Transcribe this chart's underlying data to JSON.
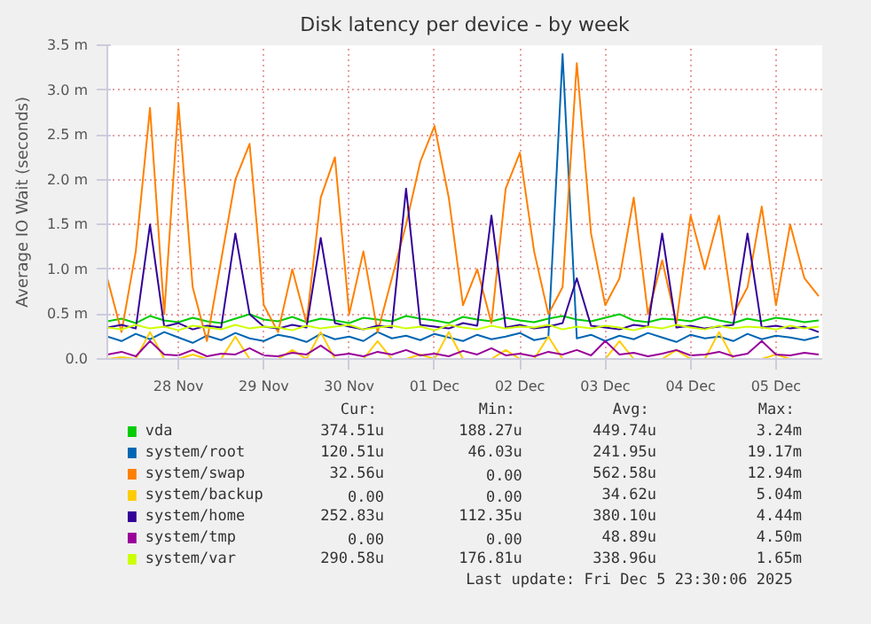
{
  "chart_data": {
    "type": "line",
    "title": "Disk latency per device - by week",
    "ylabel": "Average IO Wait (seconds)",
    "x": [
      "2025-11-27T04:00",
      "2025-11-27T08:00",
      "2025-11-27T12:00",
      "2025-11-27T16:00",
      "2025-11-27T20:00",
      "2025-11-28T00:00",
      "2025-11-28T04:00",
      "2025-11-28T08:00",
      "2025-11-28T12:00",
      "2025-11-28T16:00",
      "2025-11-28T20:00",
      "2025-11-29T00:00",
      "2025-11-29T04:00",
      "2025-11-29T08:00",
      "2025-11-29T12:00",
      "2025-11-29T16:00",
      "2025-11-29T20:00",
      "2025-11-30T00:00",
      "2025-11-30T04:00",
      "2025-11-30T08:00",
      "2025-11-30T12:00",
      "2025-11-30T16:00",
      "2025-11-30T20:00",
      "2025-12-01T00:00",
      "2025-12-01T04:00",
      "2025-12-01T08:00",
      "2025-12-01T12:00",
      "2025-12-01T16:00",
      "2025-12-01T20:00",
      "2025-12-02T00:00",
      "2025-12-02T04:00",
      "2025-12-02T08:00",
      "2025-12-02T12:00",
      "2025-12-02T16:00",
      "2025-12-02T20:00",
      "2025-12-03T00:00",
      "2025-12-03T04:00",
      "2025-12-03T08:00",
      "2025-12-03T12:00",
      "2025-12-03T16:00",
      "2025-12-03T20:00",
      "2025-12-04T00:00",
      "2025-12-04T04:00",
      "2025-12-04T08:00",
      "2025-12-04T12:00",
      "2025-12-04T16:00",
      "2025-12-04T20:00",
      "2025-12-05T00:00",
      "2025-12-05T04:00",
      "2025-12-05T08:00",
      "2025-12-05T12:00"
    ],
    "series": [
      {
        "name": "vda",
        "color": "#00cc00",
        "values": [
          0.42,
          0.45,
          0.4,
          0.48,
          0.43,
          0.41,
          0.46,
          0.42,
          0.4,
          0.45,
          0.5,
          0.44,
          0.42,
          0.47,
          0.41,
          0.45,
          0.43,
          0.4,
          0.46,
          0.44,
          0.42,
          0.48,
          0.45,
          0.43,
          0.4,
          0.47,
          0.44,
          0.42,
          0.46,
          0.43,
          0.41,
          0.45,
          0.48,
          0.44,
          0.42,
          0.46,
          0.5,
          0.43,
          0.41,
          0.45,
          0.44,
          0.42,
          0.47,
          0.43,
          0.4,
          0.45,
          0.42,
          0.46,
          0.44,
          0.41,
          0.43
        ]
      },
      {
        "name": "system/root",
        "color": "#0066b3",
        "values": [
          0.25,
          0.2,
          0.28,
          0.22,
          0.3,
          0.24,
          0.18,
          0.26,
          0.21,
          0.29,
          0.23,
          0.2,
          0.27,
          0.24,
          0.19,
          0.28,
          0.22,
          0.25,
          0.2,
          0.3,
          0.23,
          0.26,
          0.21,
          0.28,
          0.24,
          0.2,
          0.27,
          0.22,
          0.25,
          0.29,
          0.21,
          0.24,
          3.4,
          0.23,
          0.27,
          0.2,
          0.26,
          0.22,
          0.29,
          0.24,
          0.19,
          0.27,
          0.23,
          0.25,
          0.2,
          0.28,
          0.22,
          0.26,
          0.24,
          0.21,
          0.25
        ]
      },
      {
        "name": "system/swap",
        "color": "#ff8000",
        "values": [
          0.9,
          0.3,
          1.2,
          2.8,
          0.5,
          2.85,
          0.8,
          0.2,
          1.1,
          2.0,
          2.4,
          0.6,
          0.3,
          1.0,
          0.4,
          1.8,
          2.25,
          0.5,
          1.2,
          0.3,
          0.9,
          1.5,
          2.2,
          2.6,
          1.8,
          0.6,
          1.0,
          0.4,
          1.9,
          2.3,
          1.2,
          0.5,
          0.8,
          3.3,
          1.4,
          0.6,
          0.9,
          1.8,
          0.5,
          1.1,
          0.4,
          1.6,
          1.0,
          1.6,
          0.5,
          0.8,
          1.7,
          0.6,
          1.5,
          0.9,
          0.7
        ]
      },
      {
        "name": "system/backup",
        "color": "#ffcc00",
        "values": [
          0.0,
          0.02,
          0.0,
          0.3,
          0.0,
          0.0,
          0.05,
          0.0,
          0.0,
          0.25,
          0.0,
          0.0,
          0.0,
          0.1,
          0.0,
          0.3,
          0.0,
          0.0,
          0.0,
          0.2,
          0.0,
          0.0,
          0.05,
          0.0,
          0.3,
          0.0,
          0.0,
          0.0,
          0.1,
          0.0,
          0.0,
          0.25,
          0.0,
          0.0,
          0.0,
          0.0,
          0.2,
          0.0,
          0.0,
          0.0,
          0.1,
          0.0,
          0.0,
          0.3,
          0.0,
          0.0,
          0.0,
          0.05,
          0.0,
          0.0,
          0.0
        ]
      },
      {
        "name": "system/home",
        "color": "#330099",
        "values": [
          0.35,
          0.38,
          0.34,
          1.5,
          0.36,
          0.4,
          0.33,
          0.37,
          0.35,
          1.4,
          0.5,
          0.36,
          0.34,
          0.38,
          0.35,
          1.35,
          0.4,
          0.36,
          0.33,
          0.37,
          0.35,
          1.9,
          0.38,
          0.36,
          0.34,
          0.4,
          0.37,
          1.6,
          0.35,
          0.38,
          0.34,
          0.36,
          0.4,
          0.9,
          0.37,
          0.35,
          0.33,
          0.38,
          0.36,
          1.4,
          0.35,
          0.37,
          0.34,
          0.36,
          0.38,
          1.4,
          0.35,
          0.37,
          0.34,
          0.36,
          0.3
        ]
      },
      {
        "name": "system/tmp",
        "color": "#990099",
        "values": [
          0.05,
          0.08,
          0.03,
          0.2,
          0.05,
          0.04,
          0.1,
          0.03,
          0.06,
          0.05,
          0.12,
          0.04,
          0.03,
          0.07,
          0.05,
          0.15,
          0.04,
          0.06,
          0.03,
          0.08,
          0.05,
          0.1,
          0.04,
          0.06,
          0.03,
          0.09,
          0.05,
          0.12,
          0.04,
          0.06,
          0.03,
          0.08,
          0.05,
          0.1,
          0.04,
          0.2,
          0.05,
          0.07,
          0.03,
          0.06,
          0.1,
          0.04,
          0.05,
          0.08,
          0.03,
          0.06,
          0.2,
          0.05,
          0.04,
          0.07,
          0.05
        ]
      },
      {
        "name": "system/var",
        "color": "#ccff00",
        "values": [
          0.35,
          0.33,
          0.38,
          0.34,
          0.36,
          0.32,
          0.37,
          0.35,
          0.33,
          0.38,
          0.34,
          0.36,
          0.35,
          0.32,
          0.37,
          0.34,
          0.36,
          0.38,
          0.33,
          0.35,
          0.37,
          0.34,
          0.36,
          0.32,
          0.38,
          0.35,
          0.33,
          0.37,
          0.34,
          0.36,
          0.35,
          0.38,
          0.33,
          0.36,
          0.34,
          0.37,
          0.35,
          0.32,
          0.36,
          0.34,
          0.38,
          0.35,
          0.33,
          0.37,
          0.34,
          0.36,
          0.35,
          0.33,
          0.37,
          0.34,
          0.36
        ]
      }
    ],
    "xlim": [
      "2025-11-27T04:00",
      "2025-12-05T13:00"
    ],
    "xticks": [
      {
        "value": "2025-11-28",
        "label": "28 Nov"
      },
      {
        "value": "2025-11-29",
        "label": "29 Nov"
      },
      {
        "value": "2025-11-30",
        "label": "30 Nov"
      },
      {
        "value": "2025-12-01",
        "label": "01 Dec"
      },
      {
        "value": "2025-12-02",
        "label": "02 Dec"
      },
      {
        "value": "2025-12-03",
        "label": "03 Dec"
      },
      {
        "value": "2025-12-04",
        "label": "04 Dec"
      },
      {
        "value": "2025-12-05",
        "label": "05 Dec"
      }
    ],
    "ylim": [
      0,
      3.5
    ],
    "yticks": [
      {
        "value": 0,
        "label": "0.0"
      },
      {
        "value": 0.5,
        "label": "0.5 m"
      },
      {
        "value": 1,
        "label": "1.0 m"
      },
      {
        "value": 1.5,
        "label": "1.5 m"
      },
      {
        "value": 2,
        "label": "2.0 m"
      },
      {
        "value": 2.5,
        "label": "2.5 m"
      },
      {
        "value": 3,
        "label": "3.0 m"
      },
      {
        "value": 3.5,
        "label": "3.5 m"
      }
    ],
    "grid": true,
    "legend": "bottom",
    "line_style": "solid",
    "annotations": [
      "Cur:",
      "Min:",
      "Avg:",
      "Max:",
      "374.51u",
      "188.27u",
      "449.74u",
      "3.24m",
      "120.51u",
      "46.03u",
      "241.95u",
      "19.17m",
      "32.56u",
      "0.00",
      "562.58u",
      "12.94m",
      "0.00",
      "0.00",
      "34.62u",
      "5.04m",
      "252.83u",
      "112.35u",
      "380.10u",
      "4.44m",
      "0.00",
      "0.00",
      "48.89u",
      "4.50m",
      "290.58u",
      "176.81u",
      "338.96u",
      "1.65m",
      "Last update: Fri Dec  5 23:30:06 2025"
    ]
  }
}
